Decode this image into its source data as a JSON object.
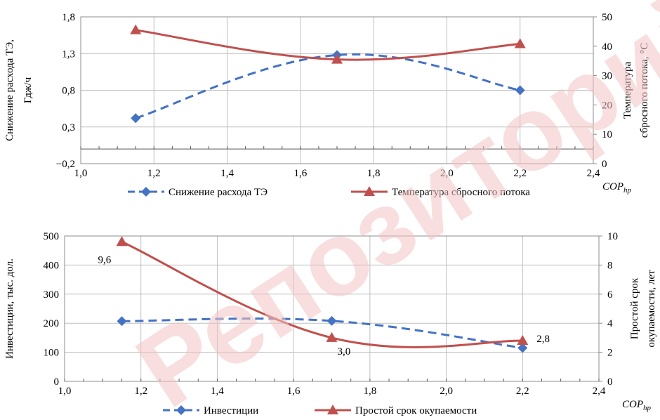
{
  "watermark": {
    "text": "Репозиторий БГ",
    "color": "#f2c2c2"
  },
  "colors": {
    "series_blue": "#4472c4",
    "series_red": "#c0504d",
    "grid": "#bfbfbf"
  },
  "chart_data": [
    {
      "type": "line",
      "x": [
        1.15,
        1.7,
        2.2
      ],
      "xlim": [
        1.0,
        2.4
      ],
      "x_ticks": [
        "1,0",
        "1,2",
        "1,4",
        "1,6",
        "1,8",
        "2,0",
        "2,2",
        "2,4"
      ],
      "xlabel_main": "COP",
      "xlabel_sub": "hp",
      "ylabel": "Снижение расхода ТЭ, Гдж/ч",
      "ylim": [
        -0.2,
        1.8
      ],
      "y_ticks": [
        "−0,2",
        "0,3",
        "0,8",
        "1,3",
        "1,8"
      ],
      "y2label_line1": "Температура",
      "y2label_line2": "сбросного потока, °С",
      "y2lim": [
        0,
        50
      ],
      "y2_ticks": [
        "0",
        "10",
        "20",
        "30",
        "40",
        "50"
      ],
      "grid": true,
      "legend_position": "bottom",
      "series": [
        {
          "name": "Снижение расхода ТЭ",
          "axis": "left",
          "style": "dashed",
          "marker": "diamond",
          "color": "#4472c4",
          "values": [
            0.42,
            1.28,
            0.8
          ]
        },
        {
          "name": "Температура  сбросного потока",
          "axis": "right",
          "style": "solid",
          "marker": "triangle",
          "color": "#c0504d",
          "values": [
            45.5,
            35.5,
            40.8
          ]
        }
      ]
    },
    {
      "type": "line",
      "x": [
        1.15,
        1.7,
        2.2
      ],
      "xlim": [
        1.0,
        2.4
      ],
      "x_ticks": [
        "1,0",
        "1,2",
        "1,4",
        "1,6",
        "1,8",
        "2,0",
        "2,2",
        "2,4"
      ],
      "xlabel_main": "COP",
      "xlabel_sub": "hp",
      "ylabel": "Инвестиции, тыс. дол.",
      "ylim": [
        0,
        500
      ],
      "y_ticks": [
        "0",
        "100",
        "200",
        "300",
        "400",
        "500"
      ],
      "y2label_line1": "Простой срок",
      "y2label_line2": "окупаемости, лет",
      "y2lim": [
        0,
        10
      ],
      "y2_ticks": [
        "0",
        "2",
        "4",
        "6",
        "8",
        "10"
      ],
      "grid": true,
      "legend_position": "bottom",
      "series": [
        {
          "name": "Инвестиции",
          "axis": "left",
          "style": "dashed",
          "marker": "diamond",
          "color": "#4472c4",
          "values": [
            207,
            208,
            115
          ]
        },
        {
          "name": "Простой срок окупаемости",
          "axis": "right",
          "style": "solid",
          "marker": "triangle",
          "color": "#c0504d",
          "values": [
            9.6,
            3.0,
            2.8
          ]
        }
      ],
      "data_labels": [
        "9,6",
        "3,0",
        "2,8"
      ]
    }
  ]
}
